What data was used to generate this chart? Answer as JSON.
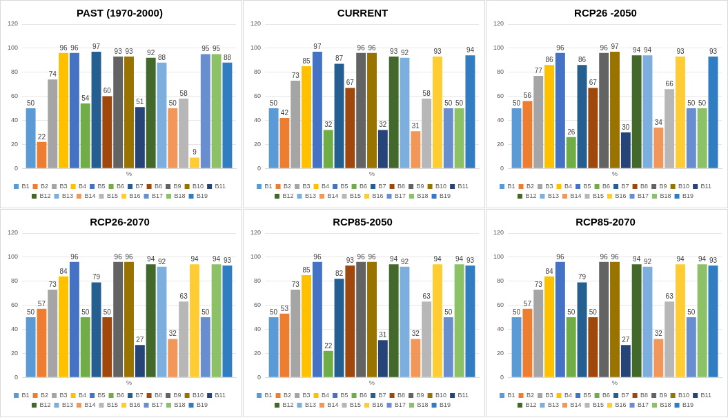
{
  "chart_data": [
    {
      "type": "bar",
      "title": "PAST (1970-2000)",
      "categories": [
        "%"
      ],
      "ylim": [
        0,
        120
      ],
      "yticks": [
        0,
        20,
        40,
        60,
        80,
        100,
        120
      ],
      "grid": "y",
      "legend": "bottom",
      "data_labels": true,
      "series": [
        {
          "name": "B1",
          "color": "#5b9bd5",
          "values": [
            50
          ]
        },
        {
          "name": "B2",
          "color": "#ed7d31",
          "values": [
            22
          ]
        },
        {
          "name": "B3",
          "color": "#a5a5a5",
          "values": [
            74
          ]
        },
        {
          "name": "B4",
          "color": "#ffc000",
          "values": [
            96
          ]
        },
        {
          "name": "B5",
          "color": "#4472c4",
          "values": [
            96
          ]
        },
        {
          "name": "B6",
          "color": "#70ad47",
          "values": [
            54
          ]
        },
        {
          "name": "B7",
          "color": "#255e91",
          "values": [
            97
          ]
        },
        {
          "name": "B8",
          "color": "#9e480e",
          "values": [
            60
          ]
        },
        {
          "name": "B9",
          "color": "#636363",
          "values": [
            93
          ]
        },
        {
          "name": "B10",
          "color": "#997300",
          "values": [
            93
          ]
        },
        {
          "name": "B11",
          "color": "#264478",
          "values": [
            51
          ]
        },
        {
          "name": "B12",
          "color": "#43682b",
          "values": [
            92
          ]
        },
        {
          "name": "B13",
          "color": "#7cafdd",
          "values": [
            88
          ]
        },
        {
          "name": "B14",
          "color": "#f1975a",
          "values": [
            50
          ]
        },
        {
          "name": "B15",
          "color": "#b7b7b7",
          "values": [
            58
          ]
        },
        {
          "name": "B16",
          "color": "#ffcd33",
          "values": [
            9
          ]
        },
        {
          "name": "B17",
          "color": "#698ed0",
          "values": [
            95
          ]
        },
        {
          "name": "B18",
          "color": "#8cc168",
          "values": [
            95
          ]
        },
        {
          "name": "B19",
          "color": "#327dc2",
          "values": [
            88
          ]
        }
      ]
    },
    {
      "type": "bar",
      "title": "CURRENT",
      "categories": [
        "%"
      ],
      "ylim": [
        0,
        120
      ],
      "yticks": [
        0,
        20,
        40,
        60,
        80,
        100,
        120
      ],
      "grid": "y",
      "legend": "bottom",
      "data_labels": true,
      "series": [
        {
          "name": "B1",
          "color": "#5b9bd5",
          "values": [
            50
          ]
        },
        {
          "name": "B2",
          "color": "#ed7d31",
          "values": [
            42
          ]
        },
        {
          "name": "B3",
          "color": "#a5a5a5",
          "values": [
            73
          ]
        },
        {
          "name": "B4",
          "color": "#ffc000",
          "values": [
            85
          ]
        },
        {
          "name": "B5",
          "color": "#4472c4",
          "values": [
            97
          ]
        },
        {
          "name": "B6",
          "color": "#70ad47",
          "values": [
            32
          ]
        },
        {
          "name": "B7",
          "color": "#255e91",
          "values": [
            87
          ]
        },
        {
          "name": "B8",
          "color": "#9e480e",
          "values": [
            67
          ]
        },
        {
          "name": "B9",
          "color": "#636363",
          "values": [
            96
          ]
        },
        {
          "name": "B10",
          "color": "#997300",
          "values": [
            96
          ]
        },
        {
          "name": "B11",
          "color": "#264478",
          "values": [
            32
          ]
        },
        {
          "name": "B12",
          "color": "#43682b",
          "values": [
            93
          ]
        },
        {
          "name": "B13",
          "color": "#7cafdd",
          "values": [
            92
          ]
        },
        {
          "name": "B14",
          "color": "#f1975a",
          "values": [
            31
          ]
        },
        {
          "name": "B15",
          "color": "#b7b7b7",
          "values": [
            58
          ]
        },
        {
          "name": "B16",
          "color": "#ffcd33",
          "values": [
            93
          ]
        },
        {
          "name": "B17",
          "color": "#698ed0",
          "values": [
            50
          ]
        },
        {
          "name": "B18",
          "color": "#8cc168",
          "values": [
            50
          ]
        },
        {
          "name": "B19",
          "color": "#327dc2",
          "values": [
            94
          ]
        }
      ]
    },
    {
      "type": "bar",
      "title": "RCP26 -2050",
      "categories": [
        "%"
      ],
      "ylim": [
        0,
        120
      ],
      "yticks": [
        0,
        20,
        40,
        60,
        80,
        100,
        120
      ],
      "grid": "y",
      "legend": "bottom",
      "data_labels": true,
      "series": [
        {
          "name": "B1",
          "color": "#5b9bd5",
          "values": [
            50
          ]
        },
        {
          "name": "B2",
          "color": "#ed7d31",
          "values": [
            56
          ]
        },
        {
          "name": "B3",
          "color": "#a5a5a5",
          "values": [
            77
          ]
        },
        {
          "name": "B4",
          "color": "#ffc000",
          "values": [
            86
          ]
        },
        {
          "name": "B5",
          "color": "#4472c4",
          "values": [
            96
          ]
        },
        {
          "name": "B6",
          "color": "#70ad47",
          "values": [
            26
          ]
        },
        {
          "name": "B7",
          "color": "#255e91",
          "values": [
            86
          ]
        },
        {
          "name": "B8",
          "color": "#9e480e",
          "values": [
            67
          ]
        },
        {
          "name": "B9",
          "color": "#636363",
          "values": [
            96
          ]
        },
        {
          "name": "B10",
          "color": "#997300",
          "values": [
            97
          ]
        },
        {
          "name": "B11",
          "color": "#264478",
          "values": [
            30
          ]
        },
        {
          "name": "B12",
          "color": "#43682b",
          "values": [
            94
          ]
        },
        {
          "name": "B13",
          "color": "#7cafdd",
          "values": [
            94
          ]
        },
        {
          "name": "B14",
          "color": "#f1975a",
          "values": [
            34
          ]
        },
        {
          "name": "B15",
          "color": "#b7b7b7",
          "values": [
            66
          ]
        },
        {
          "name": "B16",
          "color": "#ffcd33",
          "values": [
            93
          ]
        },
        {
          "name": "B17",
          "color": "#698ed0",
          "values": [
            50
          ]
        },
        {
          "name": "B18",
          "color": "#8cc168",
          "values": [
            50
          ]
        },
        {
          "name": "B19",
          "color": "#327dc2",
          "values": [
            93
          ]
        }
      ]
    },
    {
      "type": "bar",
      "title": "RCP26-2070",
      "categories": [
        "%"
      ],
      "ylim": [
        0,
        120
      ],
      "yticks": [
        0,
        20,
        40,
        60,
        80,
        100,
        120
      ],
      "grid": "y",
      "legend": "bottom",
      "data_labels": true,
      "series": [
        {
          "name": "B1",
          "color": "#5b9bd5",
          "values": [
            50
          ]
        },
        {
          "name": "B2",
          "color": "#ed7d31",
          "values": [
            57
          ]
        },
        {
          "name": "B3",
          "color": "#a5a5a5",
          "values": [
            73
          ]
        },
        {
          "name": "B4",
          "color": "#ffc000",
          "values": [
            84
          ]
        },
        {
          "name": "B5",
          "color": "#4472c4",
          "values": [
            96
          ]
        },
        {
          "name": "B6",
          "color": "#70ad47",
          "values": [
            50
          ]
        },
        {
          "name": "B7",
          "color": "#255e91",
          "values": [
            79
          ]
        },
        {
          "name": "B8",
          "color": "#9e480e",
          "values": [
            50
          ]
        },
        {
          "name": "B9",
          "color": "#636363",
          "values": [
            96
          ]
        },
        {
          "name": "B10",
          "color": "#997300",
          "values": [
            96
          ]
        },
        {
          "name": "B11",
          "color": "#264478",
          "values": [
            27
          ]
        },
        {
          "name": "B12",
          "color": "#43682b",
          "values": [
            94
          ]
        },
        {
          "name": "B13",
          "color": "#7cafdd",
          "values": [
            92
          ]
        },
        {
          "name": "B14",
          "color": "#f1975a",
          "values": [
            32
          ]
        },
        {
          "name": "B15",
          "color": "#b7b7b7",
          "values": [
            63
          ]
        },
        {
          "name": "B16",
          "color": "#ffcd33",
          "values": [
            94
          ]
        },
        {
          "name": "B17",
          "color": "#698ed0",
          "values": [
            50
          ]
        },
        {
          "name": "B18",
          "color": "#8cc168",
          "values": [
            94
          ]
        },
        {
          "name": "B19",
          "color": "#327dc2",
          "values": [
            93
          ]
        }
      ]
    },
    {
      "type": "bar",
      "title": "RCP85-2050",
      "categories": [
        "%"
      ],
      "ylim": [
        0,
        120
      ],
      "yticks": [
        0,
        20,
        40,
        60,
        80,
        100,
        120
      ],
      "grid": "y",
      "legend": "bottom",
      "data_labels": true,
      "series": [
        {
          "name": "B1",
          "color": "#5b9bd5",
          "values": [
            50
          ]
        },
        {
          "name": "B2",
          "color": "#ed7d31",
          "values": [
            53
          ]
        },
        {
          "name": "B3",
          "color": "#a5a5a5",
          "values": [
            73
          ]
        },
        {
          "name": "B4",
          "color": "#ffc000",
          "values": [
            85
          ]
        },
        {
          "name": "B5",
          "color": "#4472c4",
          "values": [
            96
          ]
        },
        {
          "name": "B6",
          "color": "#70ad47",
          "values": [
            22
          ]
        },
        {
          "name": "B7",
          "color": "#255e91",
          "values": [
            82
          ]
        },
        {
          "name": "B8",
          "color": "#9e480e",
          "values": [
            93
          ]
        },
        {
          "name": "B9",
          "color": "#636363",
          "values": [
            96
          ]
        },
        {
          "name": "B10",
          "color": "#997300",
          "values": [
            96
          ]
        },
        {
          "name": "B11",
          "color": "#264478",
          "values": [
            31
          ]
        },
        {
          "name": "B12",
          "color": "#43682b",
          "values": [
            94
          ]
        },
        {
          "name": "B13",
          "color": "#7cafdd",
          "values": [
            92
          ]
        },
        {
          "name": "B14",
          "color": "#f1975a",
          "values": [
            32
          ]
        },
        {
          "name": "B15",
          "color": "#b7b7b7",
          "values": [
            63
          ]
        },
        {
          "name": "B16",
          "color": "#ffcd33",
          "values": [
            94
          ]
        },
        {
          "name": "B17",
          "color": "#698ed0",
          "values": [
            50
          ]
        },
        {
          "name": "B18",
          "color": "#8cc168",
          "values": [
            94
          ]
        },
        {
          "name": "B19",
          "color": "#327dc2",
          "values": [
            93
          ]
        }
      ]
    },
    {
      "type": "bar",
      "title": "RCP85-2070",
      "categories": [
        "%"
      ],
      "ylim": [
        0,
        120
      ],
      "yticks": [
        0,
        20,
        40,
        60,
        80,
        100,
        120
      ],
      "grid": "y",
      "legend": "bottom",
      "data_labels": true,
      "series": [
        {
          "name": "B1",
          "color": "#5b9bd5",
          "values": [
            50
          ]
        },
        {
          "name": "B2",
          "color": "#ed7d31",
          "values": [
            57
          ]
        },
        {
          "name": "B3",
          "color": "#a5a5a5",
          "values": [
            73
          ]
        },
        {
          "name": "B4",
          "color": "#ffc000",
          "values": [
            84
          ]
        },
        {
          "name": "B5",
          "color": "#4472c4",
          "values": [
            96
          ]
        },
        {
          "name": "B6",
          "color": "#70ad47",
          "values": [
            50
          ]
        },
        {
          "name": "B7",
          "color": "#255e91",
          "values": [
            79
          ]
        },
        {
          "name": "B8",
          "color": "#9e480e",
          "values": [
            50
          ]
        },
        {
          "name": "B9",
          "color": "#636363",
          "values": [
            96
          ]
        },
        {
          "name": "B10",
          "color": "#997300",
          "values": [
            96
          ]
        },
        {
          "name": "B11",
          "color": "#264478",
          "values": [
            27
          ]
        },
        {
          "name": "B12",
          "color": "#43682b",
          "values": [
            94
          ]
        },
        {
          "name": "B13",
          "color": "#7cafdd",
          "values": [
            92
          ]
        },
        {
          "name": "B14",
          "color": "#f1975a",
          "values": [
            32
          ]
        },
        {
          "name": "B15",
          "color": "#b7b7b7",
          "values": [
            63
          ]
        },
        {
          "name": "B16",
          "color": "#ffcd33",
          "values": [
            94
          ]
        },
        {
          "name": "B17",
          "color": "#698ed0",
          "values": [
            50
          ]
        },
        {
          "name": "B18",
          "color": "#8cc168",
          "values": [
            94
          ]
        },
        {
          "name": "B19",
          "color": "#327dc2",
          "values": [
            93
          ]
        }
      ]
    }
  ]
}
